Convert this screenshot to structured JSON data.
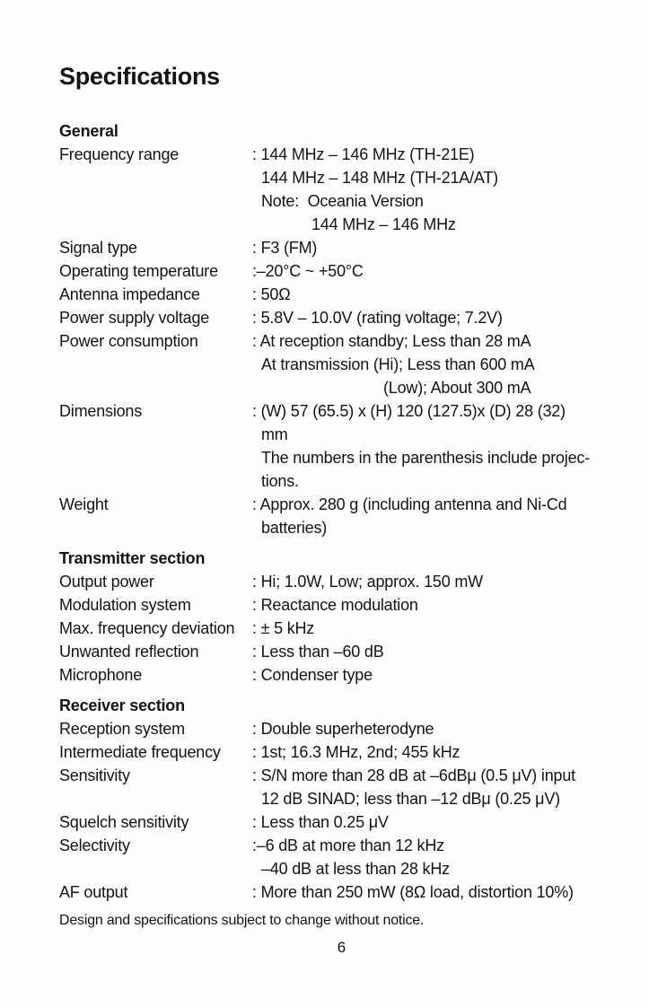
{
  "page": {
    "title": "Specifications",
    "footer": "Design and specifications subject to change without notice.",
    "page_number": "6"
  },
  "colors": {
    "text": "#131313",
    "background": "#fefefe"
  },
  "sections": [
    {
      "heading": "General",
      "rows": [
        {
          "label": "Frequency range",
          "lines": [
            {
              "t": ": 144 MHz – 146 MHz (TH-21E)"
            },
            {
              "t": "144 MHz – 148 MHz (TH-21A/AT)",
              "pad": 10
            },
            {
              "t": "Note:  Oceania Version",
              "pad": 10
            },
            {
              "t": "144 MHz – 146 MHz",
              "pad": 66
            }
          ]
        },
        {
          "label": "Signal type",
          "lines": [
            {
              "t": ": F3 (FM)"
            }
          ]
        },
        {
          "label": "Operating temperature",
          "lines": [
            {
              "t": ":–20°C ~ +50°C"
            }
          ]
        },
        {
          "label": "Antenna impedance",
          "lines": [
            {
              "t": ": 50Ω"
            }
          ]
        },
        {
          "label": "Power supply voltage",
          "lines": [
            {
              "t": ": 5.8V – 10.0V (rating voltage; 7.2V)"
            }
          ]
        },
        {
          "label": "Power consumption",
          "lines": [
            {
              "t": ": At reception standby; Less than 28 mA"
            },
            {
              "t": "At transmission (Hi); Less than 600 mA",
              "pad": 10
            },
            {
              "t": "(Low); About 300 mA",
              "pad": 146
            }
          ]
        },
        {
          "label": "Dimensions",
          "lines": [
            {
              "t": ": (W) 57 (65.5) x (H) 120 (127.5)x (D) 28 (32)"
            },
            {
              "t": "mm",
              "pad": 10
            },
            {
              "t": "The numbers in the parenthesis include projec-",
              "pad": 10
            },
            {
              "t": "tions.",
              "pad": 10
            }
          ]
        },
        {
          "label": "Weight",
          "lines": [
            {
              "t": ": Approx. 280 g (including antenna and Ni-Cd"
            },
            {
              "t": "batteries)",
              "pad": 10
            }
          ]
        }
      ]
    },
    {
      "heading": "Transmitter section",
      "rows": [
        {
          "label": "Output power",
          "lines": [
            {
              "t": ": Hi; 1.0W, Low; approx. 150 mW"
            }
          ]
        },
        {
          "label": "Modulation system",
          "lines": [
            {
              "t": ": Reactance modulation"
            }
          ]
        },
        {
          "label": "Max. frequency deviation",
          "lines": [
            {
              "t": ": ± 5 kHz"
            }
          ]
        },
        {
          "label": "Unwanted reflection",
          "lines": [
            {
              "t": ": Less than –60 dB"
            }
          ]
        },
        {
          "label": "Microphone",
          "lines": [
            {
              "t": ": Condenser type"
            }
          ]
        }
      ]
    },
    {
      "heading": "Receiver section",
      "rows": [
        {
          "label": "Reception system",
          "lines": [
            {
              "t": ": Double superheterodyne"
            }
          ]
        },
        {
          "label": "Intermediate frequency",
          "lines": [
            {
              "t": ": 1st; 16.3 MHz, 2nd; 455 kHz"
            }
          ]
        },
        {
          "label": "Sensitivity",
          "lines": [
            {
              "t": ": S/N more than 28 dB at –6dBμ (0.5 μV) input"
            },
            {
              "t": "12 dB SINAD; less than –12 dBμ (0.25 μV)",
              "pad": 10
            }
          ]
        },
        {
          "label": "Squelch sensitivity",
          "lines": [
            {
              "t": ": Less than 0.25 μV"
            }
          ]
        },
        {
          "label": "Selectivity",
          "lines": [
            {
              "t": ":–6 dB at more than 12 kHz"
            },
            {
              "t": "–40 dB at less than 28 kHz",
              "pad": 10
            }
          ]
        },
        {
          "label": "AF output",
          "lines": [
            {
              "t": ": More than 250 mW (8Ω load, distortion 10%)"
            }
          ]
        }
      ]
    }
  ]
}
